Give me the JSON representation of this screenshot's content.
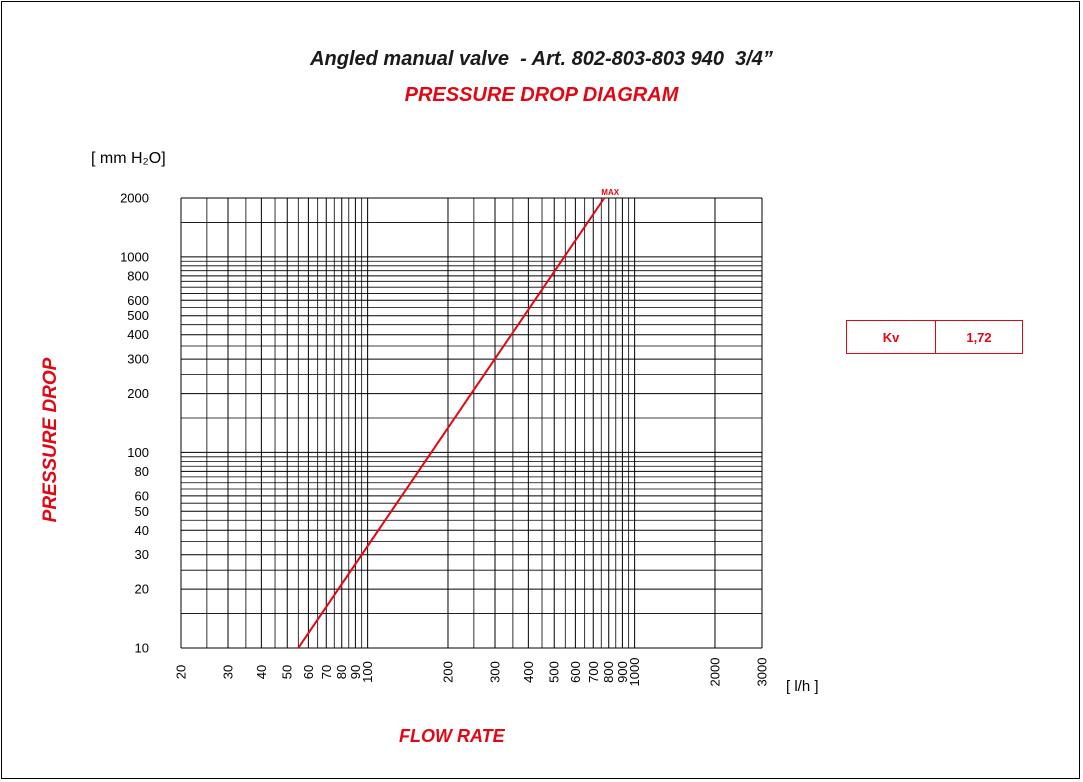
{
  "title": "Angled manual valve  - Art. 802-803-803 940  3/4”",
  "subtitle": "PRESSURE DROP DIAGRAM",
  "y_unit": "[ mm H₂O]",
  "x_unit": "[ l/h ]",
  "kv": {
    "label": "Kv",
    "value": "1,72"
  },
  "colors": {
    "accent": "#e30613",
    "grid": "#000000"
  },
  "chart_data": {
    "type": "line",
    "xlabel": "FLOW RATE",
    "ylabel": "PRESSURE DROP",
    "x_scale": "log",
    "y_scale": "log",
    "xlim": [
      20,
      3000
    ],
    "ylim": [
      10,
      2000
    ],
    "x_ticks": [
      20,
      30,
      40,
      50,
      60,
      70,
      80,
      90,
      100,
      200,
      300,
      400,
      500,
      600,
      700,
      800,
      900,
      1000,
      2000,
      3000
    ],
    "y_ticks": [
      10,
      20,
      30,
      40,
      50,
      60,
      80,
      100,
      200,
      300,
      400,
      500,
      600,
      800,
      1000,
      2000
    ],
    "grid": true,
    "series": [
      {
        "x": [
          55,
          770
        ],
        "y": [
          10,
          2000
        ],
        "color": "#e30613"
      }
    ],
    "annotations": [
      {
        "text": "MAX",
        "x": 770,
        "y": 2000
      }
    ]
  }
}
